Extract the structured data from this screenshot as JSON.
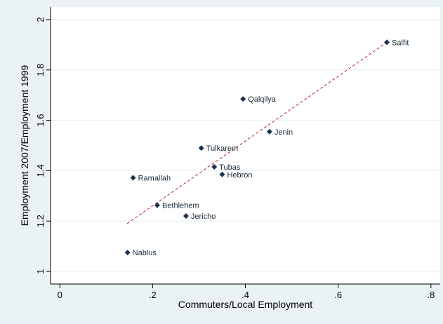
{
  "chart_data": {
    "type": "scatter",
    "xlabel": "Commuters/Local Employment",
    "ylabel": "Employment 2007/Employment 1999",
    "xlim": [
      -0.02,
      0.82
    ],
    "ylim": [
      0.95,
      2.05
    ],
    "x_ticks": [
      0,
      0.2,
      0.4,
      0.6,
      0.8
    ],
    "x_tick_labels": [
      "0",
      ".2",
      ".4",
      ".6",
      ".8"
    ],
    "y_ticks": [
      1,
      1.2,
      1.4,
      1.6,
      1.8,
      2
    ],
    "y_tick_labels": [
      "1",
      "1.2",
      "1.4",
      "1.6",
      "1.8",
      "2"
    ],
    "grid": "horizontal",
    "colors": {
      "outer_background": "#eaf2f3",
      "plot_background": "#ffffff",
      "marker": "#1a3350",
      "fit_line": "#b22222",
      "grid": "#e9eef1"
    },
    "points": [
      {
        "label": "Salfit",
        "x": 0.705,
        "y": 1.91
      },
      {
        "label": "Qalqilya",
        "x": 0.395,
        "y": 1.685
      },
      {
        "label": "Jenin",
        "x": 0.452,
        "y": 1.555
      },
      {
        "label": "Tulkarem",
        "x": 0.305,
        "y": 1.49
      },
      {
        "label": "Tubas",
        "x": 0.333,
        "y": 1.415
      },
      {
        "label": "Hebron",
        "x": 0.35,
        "y": 1.385
      },
      {
        "label": "Ramallah",
        "x": 0.158,
        "y": 1.372
      },
      {
        "label": "Bethlehem",
        "x": 0.21,
        "y": 1.263
      },
      {
        "label": "Jericho",
        "x": 0.272,
        "y": 1.22
      },
      {
        "label": "Nablus",
        "x": 0.146,
        "y": 1.075
      }
    ],
    "fit_line": {
      "style": "dashed",
      "x": [
        0.145,
        0.705
      ],
      "y": [
        1.19,
        1.91
      ]
    }
  }
}
